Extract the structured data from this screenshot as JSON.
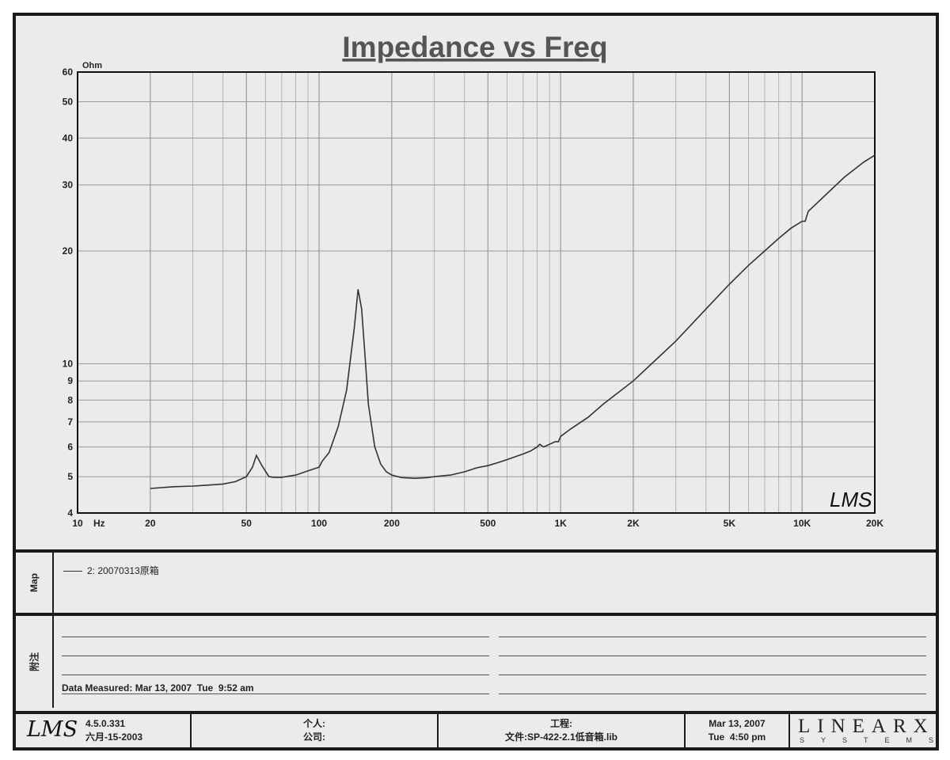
{
  "chart_data": {
    "type": "line",
    "title": "Impedance vs Freq",
    "ylabel": "Ohm",
    "xlabel": "Hz",
    "x_scale": "log",
    "y_scale": "log",
    "xlim": [
      10,
      20000
    ],
    "ylim": [
      4,
      60
    ],
    "grid": true,
    "x_ticks": [
      {
        "value": 10,
        "label": "10"
      },
      {
        "value": 20,
        "label": "20"
      },
      {
        "value": 50,
        "label": "50"
      },
      {
        "value": 100,
        "label": "100"
      },
      {
        "value": 200,
        "label": "200"
      },
      {
        "value": 500,
        "label": "500"
      },
      {
        "value": 1000,
        "label": "1K"
      },
      {
        "value": 2000,
        "label": "2K"
      },
      {
        "value": 5000,
        "label": "5K"
      },
      {
        "value": 10000,
        "label": "10K"
      },
      {
        "value": 20000,
        "label": "20K"
      }
    ],
    "y_ticks": [
      4,
      5,
      6,
      7,
      8,
      9,
      10,
      20,
      30,
      40,
      50,
      60
    ],
    "series": [
      {
        "name": "2: 20070313原箱",
        "color": "#333333",
        "x": [
          20,
          25,
          30,
          35,
          40,
          45,
          50,
          53,
          55,
          58,
          62,
          65,
          70,
          80,
          90,
          100,
          103,
          110,
          120,
          130,
          140,
          145,
          150,
          155,
          160,
          170,
          180,
          190,
          200,
          220,
          250,
          280,
          300,
          350,
          400,
          450,
          500,
          550,
          600,
          700,
          750,
          800,
          820,
          850,
          900,
          950,
          980,
          1000,
          1100,
          1300,
          1500,
          2000,
          2500,
          3000,
          4000,
          5000,
          6000,
          7000,
          8000,
          9000,
          10000,
          10300,
          10600,
          12000,
          15000,
          18000,
          20000
        ],
        "y": [
          4.65,
          4.7,
          4.72,
          4.75,
          4.78,
          4.85,
          5.0,
          5.3,
          5.7,
          5.35,
          5.0,
          4.98,
          4.98,
          5.05,
          5.18,
          5.3,
          5.5,
          5.8,
          6.8,
          8.5,
          12.5,
          15.8,
          14.0,
          10.5,
          7.8,
          6.0,
          5.4,
          5.15,
          5.05,
          4.97,
          4.95,
          4.97,
          5.0,
          5.05,
          5.15,
          5.28,
          5.35,
          5.45,
          5.55,
          5.75,
          5.85,
          6.0,
          6.1,
          6.0,
          6.1,
          6.2,
          6.2,
          6.4,
          6.7,
          7.2,
          7.8,
          9.0,
          10.3,
          11.5,
          14.0,
          16.3,
          18.3,
          20.0,
          21.6,
          23.0,
          24.0,
          24.0,
          25.5,
          27.5,
          31.5,
          34.5,
          36.0
        ]
      }
    ]
  },
  "plot_badge": "LMS",
  "map_panel": {
    "label": "Map",
    "legend_entry": "2: 20070313原箱"
  },
  "notes_panel": {
    "label": "附注",
    "measured": "Data Measured: Mar 13, 2007  Tue  9:52 am"
  },
  "footer": {
    "logo": "LMS",
    "version": "4.5.0.331",
    "version_date": "六月-15-2003",
    "person_label": "个人:",
    "company_label": "公司:",
    "project_label": "工程:",
    "file_label": "文件:SP-422-2.1低音箱.lib",
    "date": "Mar 13, 2007",
    "time": "Tue  4:50 pm",
    "brand_main": "LINEARX",
    "brand_sub": "SYSTEMS"
  }
}
